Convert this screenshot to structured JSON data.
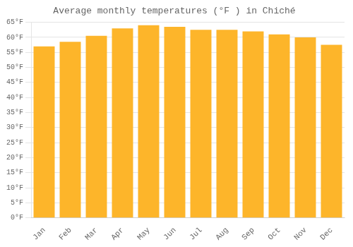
{
  "chart_data": {
    "type": "bar",
    "title": "Average monthly temperatures (°F ) in Chiché",
    "categories": [
      "Jan",
      "Feb",
      "Mar",
      "Apr",
      "May",
      "Jun",
      "Jul",
      "Aug",
      "Sep",
      "Oct",
      "Nov",
      "Dec"
    ],
    "values": [
      57.0,
      58.5,
      60.5,
      63.0,
      64.0,
      63.5,
      62.5,
      62.5,
      62.0,
      61.0,
      60.0,
      57.5
    ],
    "color": "#FDB52A",
    "ylim": [
      0,
      65
    ],
    "yticks": [
      {
        "value": 0,
        "label": "0°F"
      },
      {
        "value": 5,
        "label": "5°F"
      },
      {
        "value": 10,
        "label": "10°F"
      },
      {
        "value": 15,
        "label": "15°F"
      },
      {
        "value": 20,
        "label": "20°F"
      },
      {
        "value": 25,
        "label": "25°F"
      },
      {
        "value": 30,
        "label": "30°F"
      },
      {
        "value": 35,
        "label": "35°F"
      },
      {
        "value": 40,
        "label": "40°F"
      },
      {
        "value": 45,
        "label": "45°F"
      },
      {
        "value": 50,
        "label": "50°F"
      },
      {
        "value": 55,
        "label": "55°F"
      },
      {
        "value": 60,
        "label": "60°F"
      },
      {
        "value": 65,
        "label": "65°F"
      }
    ],
    "grid": true
  }
}
